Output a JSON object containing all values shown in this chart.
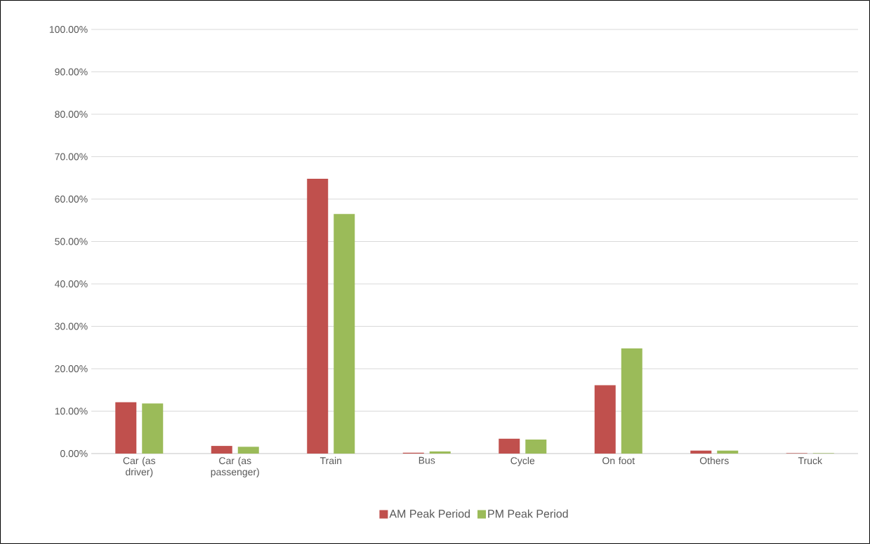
{
  "chart_data": {
    "type": "bar",
    "categories": [
      "Car (as driver)",
      "Car (as passenger)",
      "Train",
      "Bus",
      "Cycle",
      "On foot",
      "Others",
      "Truck"
    ],
    "series": [
      {
        "name": "AM Peak Period",
        "color": "#c0504d",
        "values": [
          12.1,
          1.8,
          64.8,
          0.2,
          3.5,
          16.1,
          0.7,
          0.1
        ]
      },
      {
        "name": "PM Peak Period",
        "color": "#9bbb59",
        "values": [
          11.8,
          1.6,
          56.5,
          0.5,
          3.3,
          24.8,
          0.7,
          0.1
        ]
      }
    ],
    "ylim": [
      0,
      100
    ],
    "yticks": [
      {
        "value": 0,
        "label": "0.00%"
      },
      {
        "value": 10,
        "label": "10.00%"
      },
      {
        "value": 20,
        "label": "20.00%"
      },
      {
        "value": 30,
        "label": "30.00%"
      },
      {
        "value": 40,
        "label": "40.00%"
      },
      {
        "value": 50,
        "label": "50.00%"
      },
      {
        "value": 60,
        "label": "60.00%"
      },
      {
        "value": 70,
        "label": "70.00%"
      },
      {
        "value": 80,
        "label": "80.00%"
      },
      {
        "value": 90,
        "label": "90.00%"
      },
      {
        "value": 100,
        "label": "100.00%"
      }
    ],
    "grid": "y",
    "legend": "bottom"
  }
}
